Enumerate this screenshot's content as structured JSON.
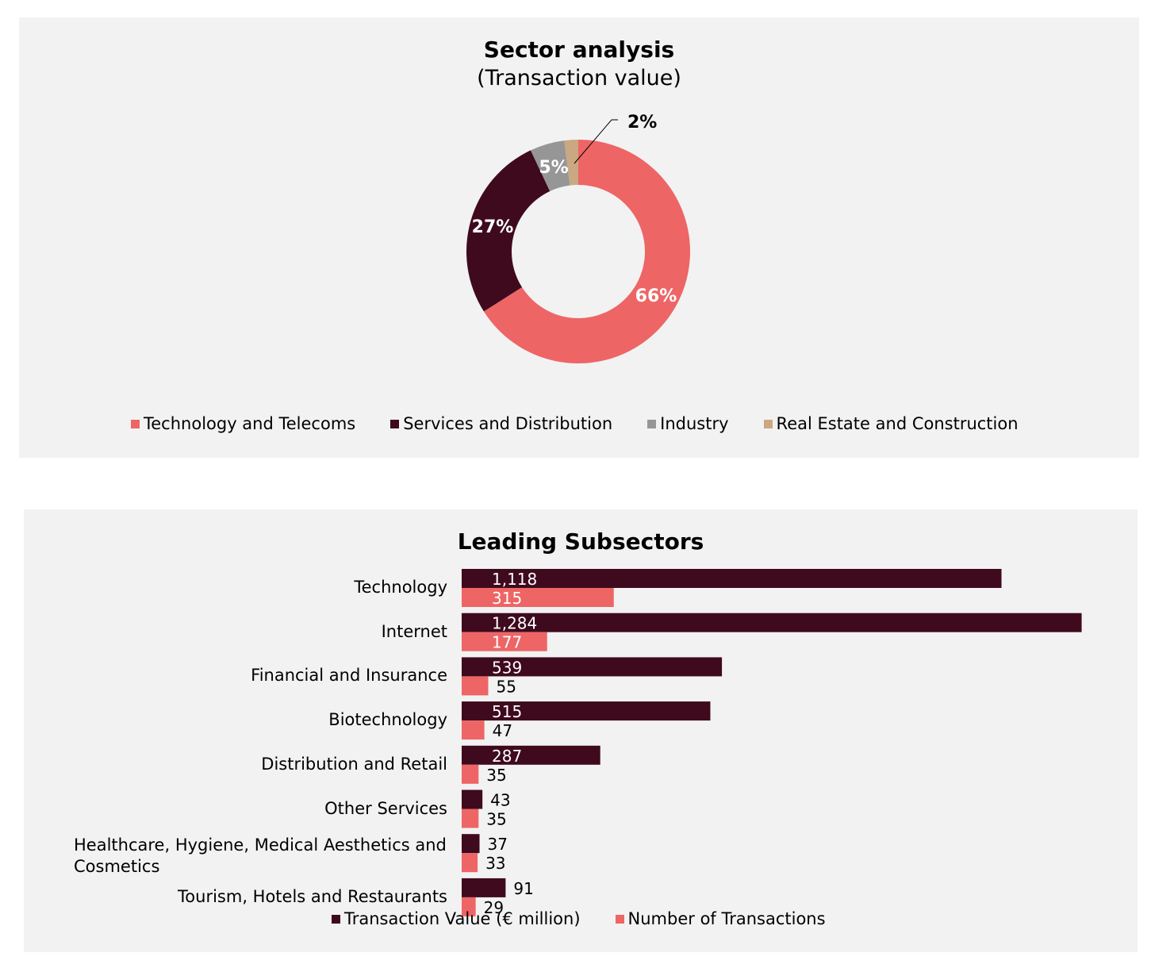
{
  "colors": {
    "panel_bg": "#f2f2f2",
    "coral": "#ee6566",
    "dark": "#3f0a1e",
    "gray": "#969696",
    "tan": "#c9a882"
  },
  "donut": {
    "title": "Sector analysis",
    "subtitle": "(Transaction value)",
    "legend": [
      {
        "label": "Technology and Telecoms",
        "color": "#ee6566"
      },
      {
        "label": "Services and Distribution",
        "color": "#3f0a1e"
      },
      {
        "label": "Industry",
        "color": "#969696"
      },
      {
        "label": "Real Estate and Construction",
        "color": "#c9a882"
      }
    ]
  },
  "bars": {
    "title": "Leading Subsectors",
    "legend": [
      {
        "label": "Transaction Value (€ million)",
        "color": "#3f0a1e"
      },
      {
        "label": "Number of Transactions",
        "color": "#ee6566"
      }
    ]
  },
  "chart_data": [
    {
      "type": "pie",
      "variant": "donut",
      "title": "Sector analysis",
      "subtitle": "(Transaction value)",
      "categories": [
        "Technology and Telecoms",
        "Services and Distribution",
        "Industry",
        "Real Estate and Construction"
      ],
      "values": [
        66,
        27,
        5,
        2
      ],
      "labels": [
        "66%",
        "27%",
        "5%",
        "2%"
      ],
      "colors": [
        "#ee6566",
        "#3f0a1e",
        "#969696",
        "#c9a882"
      ],
      "legend": "bottom"
    },
    {
      "type": "bar",
      "orientation": "horizontal",
      "title": "Leading Subsectors",
      "categories": [
        "Technology",
        "Internet",
        "Financial and Insurance",
        "Biotechnology",
        "Distribution and Retail",
        "Other Services",
        "Healthcare, Hygiene, Medical Aesthetics and Cosmetics",
        "Tourism, Hotels and Restaurants"
      ],
      "series": [
        {
          "name": "Transaction Value (€ million)",
          "values": [
            1118,
            1284,
            539,
            515,
            287,
            43,
            37,
            91
          ],
          "labels": [
            "1,118",
            "1,284",
            "539",
            "515",
            "287",
            "43",
            "37",
            "91"
          ],
          "color": "#3f0a1e"
        },
        {
          "name": "Number of Transactions",
          "values": [
            315,
            177,
            55,
            47,
            35,
            35,
            33,
            29
          ],
          "labels": [
            "315",
            "177",
            "55",
            "47",
            "35",
            "35",
            "33",
            "29"
          ],
          "color": "#ee6566"
        }
      ],
      "grid": false,
      "legend": "bottom"
    }
  ]
}
